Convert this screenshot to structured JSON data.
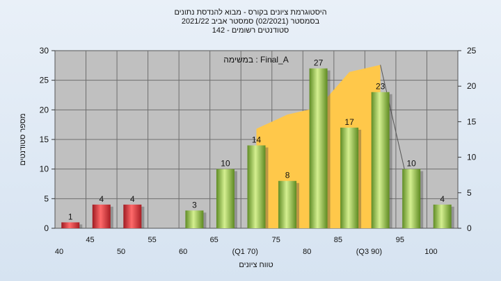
{
  "title_lines": [
    "היסטוגרמת ציונים בקורס - מבוא להנדסת נתונים",
    "בסמסטר  (02/2021)  סמסטר אביב 2021/22",
    "סטודנטים רשומים - 142"
  ],
  "chart_data": {
    "type": "bar",
    "annotation": "במשימה : Final_A",
    "xlabel": "טווח ציונים",
    "ylabel": "מספר סטודנטים",
    "ylim": [
      0,
      30
    ],
    "y_ticks": [
      0,
      5,
      10,
      15,
      20,
      25,
      30
    ],
    "y2lim": [
      0,
      25
    ],
    "y2_ticks": [
      0,
      5,
      10,
      15,
      20,
      25
    ],
    "categories": [
      "40",
      "45",
      "50",
      "55",
      "60",
      "65",
      "(Q1 70)",
      "75",
      "80",
      "85",
      "(Q3 90)",
      "95",
      "100"
    ],
    "values": [
      1,
      4,
      4,
      0,
      3,
      10,
      14,
      8,
      27,
      17,
      23,
      10,
      4
    ],
    "data_labels": [
      "1",
      "4",
      "4",
      "",
      "3",
      "10",
      "14",
      "8",
      "27",
      "17",
      "23",
      "10",
      "4"
    ],
    "bar_colors": [
      "red",
      "red",
      "red",
      "red",
      "green",
      "green",
      "green",
      "green",
      "green",
      "green",
      "green",
      "green",
      "green"
    ],
    "range_band": {
      "x": [
        "(Q1 70)",
        "75",
        "80",
        "85",
        "(Q3 90)"
      ],
      "values_y2": [
        14,
        16,
        17,
        22,
        23
      ]
    },
    "grid": true,
    "colors": {
      "plot_bg": "#c0c0c0",
      "red_bar": "#e0454a",
      "green_bar": "#a8d25a",
      "band": "#ffc84a"
    }
  }
}
